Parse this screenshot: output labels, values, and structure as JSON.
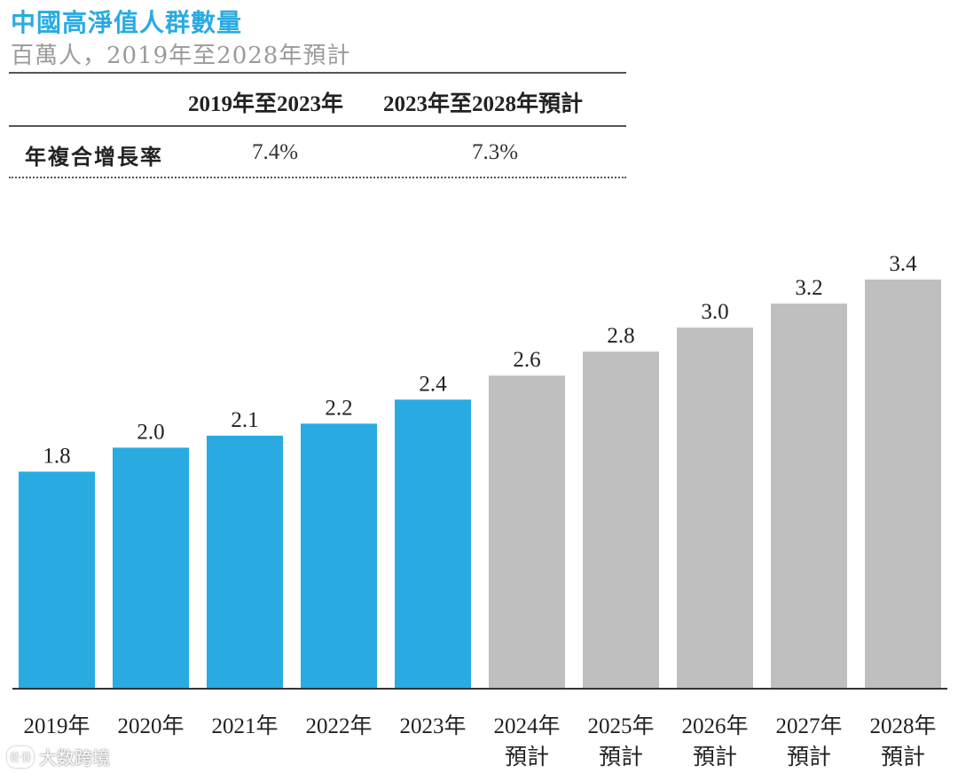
{
  "header": {
    "title": "中國高淨值人群數量",
    "subtitle": "百萬人，2019年至2028年預計"
  },
  "cagr_table": {
    "col1_header": "2019年至2023年",
    "col2_header": "2023年至2028年預計",
    "row_label": "年複合增長率",
    "col1_value": "7.4%",
    "col2_value": "7.3%"
  },
  "watermark": {
    "icon_text": "((·))",
    "text": "大数跨境"
  },
  "colors": {
    "actual": "#29abe2",
    "forecast": "#bfbfbf",
    "title": "#29abe2"
  },
  "chart_data": {
    "type": "bar",
    "title": "中國高淨值人群數量",
    "subtitle": "百萬人，2019年至2028年預計",
    "categories": [
      [
        "2019年"
      ],
      [
        "2020年"
      ],
      [
        "2021年"
      ],
      [
        "2022年"
      ],
      [
        "2023年"
      ],
      [
        "2024年",
        "預計"
      ],
      [
        "2025年",
        "預計"
      ],
      [
        "2026年",
        "預計"
      ],
      [
        "2027年",
        "預計"
      ],
      [
        "2028年",
        "預計"
      ]
    ],
    "values": [
      1.8,
      2.0,
      2.1,
      2.2,
      2.4,
      2.6,
      2.8,
      3.0,
      3.2,
      3.4
    ],
    "labels": [
      "1.8",
      "2.0",
      "2.1",
      "2.2",
      "2.4",
      "2.6",
      "2.8",
      "3.0",
      "3.2",
      "3.4"
    ],
    "forecast": [
      false,
      false,
      false,
      false,
      false,
      true,
      true,
      true,
      true,
      true
    ],
    "xlabel": "",
    "ylabel": "百萬人",
    "ylim": [
      0,
      3.4
    ],
    "grid": false
  }
}
